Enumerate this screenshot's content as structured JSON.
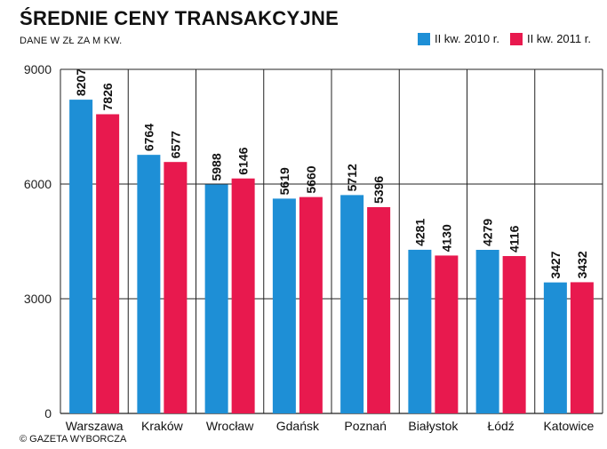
{
  "header": {
    "title": "ŚREDNIE CENY TRANSAKCYJNE",
    "subtitle": "DANE W ZŁ ZA M KW."
  },
  "footer": {
    "credit": "© GAZETA WYBORCZA"
  },
  "chart_data": {
    "type": "bar",
    "title": "ŚREDNIE CENY TRANSAKCYJNE",
    "subtitle": "DANE W ZŁ ZA M KW.",
    "categories": [
      "Warszawa",
      "Kraków",
      "Wrocław",
      "Gdańsk",
      "Poznań",
      "Białystok",
      "Łódź",
      "Katowice"
    ],
    "series": [
      {
        "name": "II kw. 2010 r.",
        "color": "#1e8fd6",
        "values": [
          8207,
          6764,
          5988,
          5619,
          5712,
          4281,
          4279,
          3427
        ]
      },
      {
        "name": "II kw. 2011 r.",
        "color": "#e8194e",
        "values": [
          7826,
          6577,
          6146,
          5660,
          5396,
          4130,
          4116,
          3432
        ]
      }
    ],
    "yticks": [
      "0",
      "3000",
      "6000",
      "9000"
    ],
    "ylim": [
      0,
      9000
    ],
    "grid": true,
    "legend_position": "top-right",
    "xlabel": "",
    "ylabel": ""
  }
}
